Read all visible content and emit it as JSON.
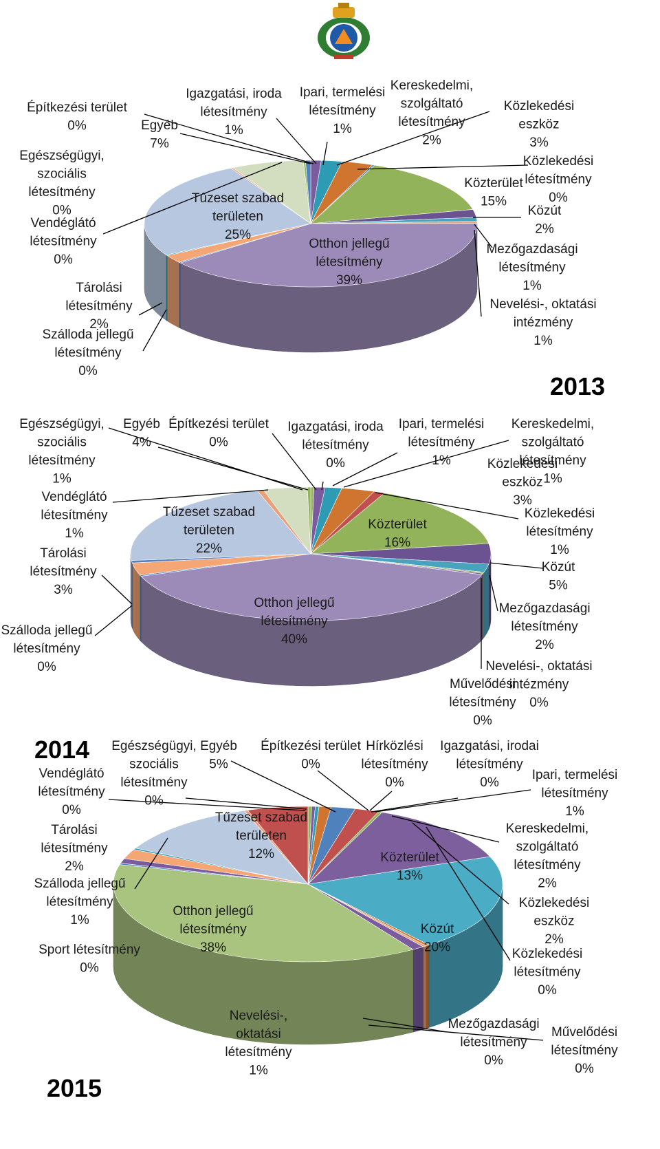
{
  "colors": {
    "ipari": "#7A5C9E",
    "kereskedelmi": "#2E9BB5",
    "eszkoz": "#D07530",
    "kozterulet": "#93B35A",
    "kozut": "#6B5290",
    "mezogazdasagi": "#4AA3BC",
    "neveles": "#E8A17B",
    "otthon": "#9C8BB8",
    "tarolasi": "#F4A675",
    "szabad": "#B7C7E0",
    "egyeb": "#D3DEC0",
    "piros": "#C0504D",
    "kek": "#4F81BD",
    "otthon2015": "#A9C47F",
    "kozut2015": "#4BACC6",
    "kozterulet2015": "#7D5F9E",
    "egyeb2015": "#B8C9E0"
  },
  "chart_data": [
    {
      "type": "pie",
      "title": "2013",
      "slices": [
        {
          "label": "Ipari, termelési létesítmény",
          "value": 1,
          "pct": "1%",
          "color": "ipari"
        },
        {
          "label": "Kereskedelmi, szolgáltató létesítmény",
          "value": 2,
          "pct": "2%",
          "color": "kereskedelmi"
        },
        {
          "label": "Közlekedési eszköz",
          "value": 3,
          "pct": "3%",
          "color": "eszkoz"
        },
        {
          "label": "Közlekedési létesítmény",
          "value": 0.2,
          "pct": "0%",
          "color": "kek"
        },
        {
          "label": "Közterület",
          "value": 15,
          "pct": "15%",
          "color": "kozterulet"
        },
        {
          "label": "Közút",
          "value": 2,
          "pct": "2%",
          "color": "kozut"
        },
        {
          "label": "Mezőgazdasági létesítmény",
          "value": 1,
          "pct": "1%",
          "color": "mezogazdasagi"
        },
        {
          "label": "Nevelési-, oktatási intézmény",
          "value": 0.5,
          "pct": "1%",
          "color": "neveles"
        },
        {
          "label": "Otthon jellegű létesítmény",
          "value": 39,
          "pct": "39%",
          "color": "otthon"
        },
        {
          "label": "Szálloda jellegű létesítmény",
          "value": 0.2,
          "pct": "0%",
          "color": "kek"
        },
        {
          "label": "Tárolási létesítmény",
          "value": 2,
          "pct": "2%",
          "color": "tarolasi"
        },
        {
          "label": "Vendéglátó létesítmény",
          "value": 0.2,
          "pct": "0%",
          "color": "kereskedelmi"
        },
        {
          "label": "Tűzeset szabad területen",
          "value": 25,
          "pct": "25%",
          "color": "szabad"
        },
        {
          "label": "Egészségügyi, szociális létesítmény",
          "value": 0.2,
          "pct": "0%",
          "color": "neveles"
        },
        {
          "label": "Egyéb",
          "value": 7,
          "pct": "7%",
          "color": "egyeb"
        },
        {
          "label": "Építkezési terület",
          "value": 0.2,
          "pct": "0%",
          "color": "kozterulet"
        },
        {
          "label": "Igazgatási, iroda létesítmény",
          "value": 0.5,
          "pct": "1%",
          "color": "kek"
        }
      ]
    },
    {
      "type": "pie",
      "title": "2014",
      "slices": [
        {
          "label": "Igazgatási, iroda létesítmény",
          "value": 0.3,
          "pct": "0%",
          "color": "kozterulet"
        },
        {
          "label": "Ipari, termelési létesítmény",
          "value": 1,
          "pct": "1%",
          "color": "ipari"
        },
        {
          "label": "Kereskedelmi, szolgáltató létesítmény",
          "value": 1.5,
          "pct": "1%",
          "color": "kereskedelmi"
        },
        {
          "label": "Közlekedési eszköz",
          "value": 3,
          "pct": "3%",
          "color": "eszkoz"
        },
        {
          "label": "Közlekedési létesítmény",
          "value": 1,
          "pct": "1%",
          "color": "piros"
        },
        {
          "label": "Közterület",
          "value": 16,
          "pct": "16%",
          "color": "kozterulet"
        },
        {
          "label": "Közút",
          "value": 5,
          "pct": "5%",
          "color": "kozut"
        },
        {
          "label": "Mezőgazdasági létesítmény",
          "value": 2,
          "pct": "2%",
          "color": "mezogazdasagi"
        },
        {
          "label": "Nevelési-, oktatási intézmény",
          "value": 0.3,
          "pct": "0%",
          "color": "kozterulet"
        },
        {
          "label": "Művelődési létesítmény",
          "value": 0.3,
          "pct": "0%",
          "color": "ipari"
        },
        {
          "label": "Otthon jellegű létesítmény",
          "value": 40,
          "pct": "40%",
          "color": "otthon"
        },
        {
          "label": "Szálloda jellegű létesítmény",
          "value": 0.3,
          "pct": "0%",
          "color": "kek"
        },
        {
          "label": "Tárolási létesítmény",
          "value": 3,
          "pct": "3%",
          "color": "tarolasi"
        },
        {
          "label": "Vendéglátó létesítmény",
          "value": 0.6,
          "pct": "1%",
          "color": "kek"
        },
        {
          "label": "Tűzeset szabad területen",
          "value": 22,
          "pct": "22%",
          "color": "szabad"
        },
        {
          "label": "Egészségügyi, szociális létesítmény",
          "value": 0.6,
          "pct": "1%",
          "color": "neveles"
        },
        {
          "label": "Egyéb",
          "value": 4,
          "pct": "4%",
          "color": "egyeb"
        },
        {
          "label": "Építkezési terület",
          "value": 0.3,
          "pct": "0%",
          "color": "kozterulet"
        }
      ]
    },
    {
      "type": "pie",
      "title": "2015",
      "slices": [
        {
          "label": "Építkezési terület",
          "value": 0.3,
          "pct": "0%",
          "color": "kozterulet"
        },
        {
          "label": "Hírközlési létesítmény",
          "value": 0.3,
          "pct": "0%",
          "color": "ipari"
        },
        {
          "label": "Igazgatási, irodai létesítmény",
          "value": 0.3,
          "pct": "0%",
          "color": "kereskedelmi"
        },
        {
          "label": "Ipari, termelési létesítmény",
          "value": 1,
          "pct": "1%",
          "color": "eszkoz"
        },
        {
          "label": "Kereskedelmi, szolgáltató létesítmény",
          "value": 2,
          "pct": "2%",
          "color": "kek"
        },
        {
          "label": "Közlekedési eszköz",
          "value": 2,
          "pct": "2%",
          "color": "piros"
        },
        {
          "label": "Közlekedési létesítmény",
          "value": 0.3,
          "pct": "0%",
          "color": "kozterulet"
        },
        {
          "label": "Közterület",
          "value": 13,
          "pct": "13%",
          "color": "kozterulet2015"
        },
        {
          "label": "Közút",
          "value": 20,
          "pct": "20%",
          "color": "kozut2015"
        },
        {
          "label": "Mezőgazdasági létesítmény",
          "value": 0.3,
          "pct": "0%",
          "color": "eszkoz"
        },
        {
          "label": "Művelődési létesítmény",
          "value": 0.3,
          "pct": "0%",
          "color": "neveles"
        },
        {
          "label": "Nevelési-, oktatási létesítmény",
          "value": 1,
          "pct": "1%",
          "color": "ipari"
        },
        {
          "label": "Otthon jellegű létesítmény",
          "value": 38,
          "pct": "38%",
          "color": "otthon2015"
        },
        {
          "label": "Sport létesítmény",
          "value": 0.3,
          "pct": "0%",
          "color": "kek"
        },
        {
          "label": "Szálloda jellegű létesítmény",
          "value": 1,
          "pct": "1%",
          "color": "ipari"
        },
        {
          "label": "Tárolási létesítmény",
          "value": 2,
          "pct": "2%",
          "color": "tarolasi"
        },
        {
          "label": "Vendéglátó létesítmény",
          "value": 0.3,
          "pct": "0%",
          "color": "kereskedelmi"
        },
        {
          "label": "Tűzeset szabad területen",
          "value": 12,
          "pct": "12%",
          "color": "egyeb2015"
        },
        {
          "label": "Egészségügyi, szociális létesítmény",
          "value": 0.3,
          "pct": "0%",
          "color": "neveles"
        },
        {
          "label": "Egyéb",
          "value": 5,
          "pct": "5%",
          "color": "piros"
        }
      ]
    }
  ]
}
